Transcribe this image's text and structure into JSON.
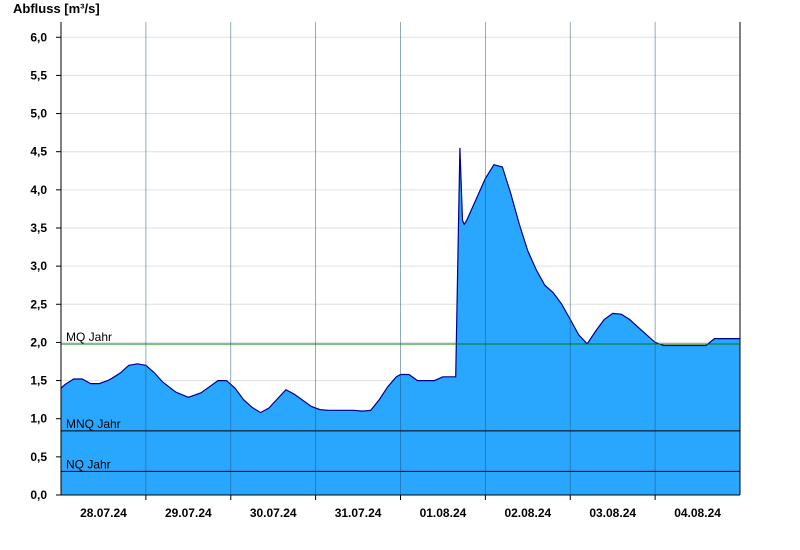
{
  "chart_data": {
    "type": "area",
    "ylabel": "Abfluss [m³/s]",
    "ylim": [
      0,
      6.2
    ],
    "yticks": [
      "0,0",
      "0,5",
      "1,0",
      "1,5",
      "2,0",
      "2,5",
      "3,0",
      "3,5",
      "4,0",
      "4,5",
      "5,0",
      "5,5",
      "6,0"
    ],
    "xlim": [
      0,
      8
    ],
    "xticks": [
      "28.07.24",
      "29.07.24",
      "30.07.24",
      "31.07.24",
      "01.08.24",
      "02.08.24",
      "03.08.24",
      "04.08.24"
    ],
    "grid": true,
    "colors": {
      "area_fill": "#29A7FF",
      "area_line": "#00008B",
      "mq_line": "#008000",
      "ref_line": "#000000",
      "grid": "#e0e0e0"
    },
    "reference_lines": [
      {
        "label": "MQ Jahr",
        "value": 1.98
      },
      {
        "label": "MNQ Jahr",
        "value": 0.84
      },
      {
        "label": "NQ Jahr",
        "value": 0.31
      }
    ],
    "series": [
      {
        "x": [
          0,
          0.05,
          0.15,
          0.25,
          0.35,
          0.45,
          0.55,
          0.6,
          0.7,
          0.8,
          0.9,
          1.0,
          1.1,
          1.2,
          1.35,
          1.5,
          1.65,
          1.75,
          1.85,
          1.95,
          2.05,
          2.15,
          2.25,
          2.35,
          2.45,
          2.55,
          2.65,
          2.75,
          2.85,
          2.95,
          3.05,
          3.15,
          3.25,
          3.35,
          3.45,
          3.55,
          3.65,
          3.75,
          3.85,
          3.95,
          4.0,
          4.1,
          4.2,
          4.3,
          4.4,
          4.5,
          4.65,
          4.7,
          4.73,
          4.75,
          4.78,
          4.82,
          4.9,
          5.0,
          5.1,
          5.2,
          5.3,
          5.4,
          5.5,
          5.6,
          5.7,
          5.8,
          5.9,
          6.0,
          6.1,
          6.2,
          6.3,
          6.4,
          6.5,
          6.6,
          6.7,
          6.8,
          6.9,
          7.0,
          7.1,
          7.2,
          7.3,
          7.4,
          7.5,
          7.6,
          7.7,
          7.8,
          7.9,
          7.95,
          8.0
        ],
        "y": [
          1.4,
          1.45,
          1.52,
          1.52,
          1.46,
          1.46,
          1.5,
          1.53,
          1.6,
          1.7,
          1.72,
          1.7,
          1.6,
          1.48,
          1.35,
          1.28,
          1.34,
          1.42,
          1.5,
          1.5,
          1.4,
          1.25,
          1.15,
          1.08,
          1.14,
          1.26,
          1.38,
          1.32,
          1.24,
          1.16,
          1.12,
          1.11,
          1.11,
          1.11,
          1.11,
          1.1,
          1.11,
          1.25,
          1.42,
          1.55,
          1.58,
          1.58,
          1.5,
          1.5,
          1.5,
          1.55,
          1.55,
          4.55,
          3.6,
          3.55,
          3.6,
          3.7,
          3.9,
          4.15,
          4.33,
          4.3,
          3.95,
          3.55,
          3.2,
          2.95,
          2.75,
          2.65,
          2.5,
          2.3,
          2.1,
          1.98,
          2.15,
          2.3,
          2.38,
          2.37,
          2.3,
          2.2,
          2.1,
          2.0,
          1.96,
          1.96,
          1.96,
          1.96,
          1.96,
          1.96,
          2.05,
          2.05,
          2.05,
          2.05,
          2.05
        ]
      }
    ]
  }
}
